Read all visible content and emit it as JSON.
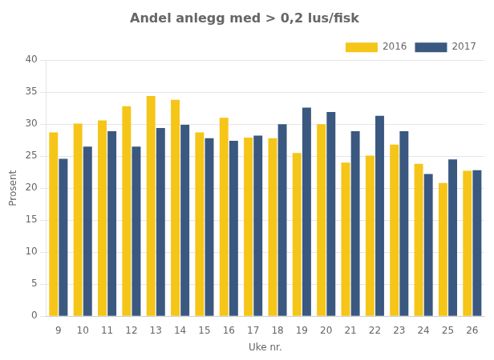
{
  "chart_data": {
    "type": "bar",
    "title": "Andel anlegg med > 0,2 lus/fisk",
    "xlabel": "Uke nr.",
    "ylabel": "Prosent",
    "categories": [
      9,
      10,
      11,
      12,
      13,
      14,
      15,
      16,
      17,
      18,
      19,
      20,
      21,
      22,
      23,
      24,
      25,
      26
    ],
    "series": [
      {
        "name": "2016",
        "color": "#F5C518",
        "values": [
          28.7,
          30.1,
          30.6,
          32.8,
          34.4,
          33.8,
          28.7,
          31.0,
          27.9,
          27.8,
          25.5,
          30.0,
          24.0,
          25.1,
          26.8,
          23.8,
          20.8,
          22.7
        ]
      },
      {
        "name": "2017",
        "color": "#3A5880",
        "values": [
          24.6,
          26.5,
          28.9,
          26.5,
          29.4,
          29.9,
          27.8,
          27.4,
          28.2,
          30.0,
          32.6,
          31.9,
          28.9,
          31.3,
          28.9,
          22.2,
          24.5,
          22.8
        ]
      }
    ],
    "ylim": [
      0,
      40
    ],
    "yticks": [
      0,
      5,
      10,
      15,
      20,
      25,
      30,
      35,
      40
    ],
    "grid": true,
    "legend": "upper right"
  }
}
